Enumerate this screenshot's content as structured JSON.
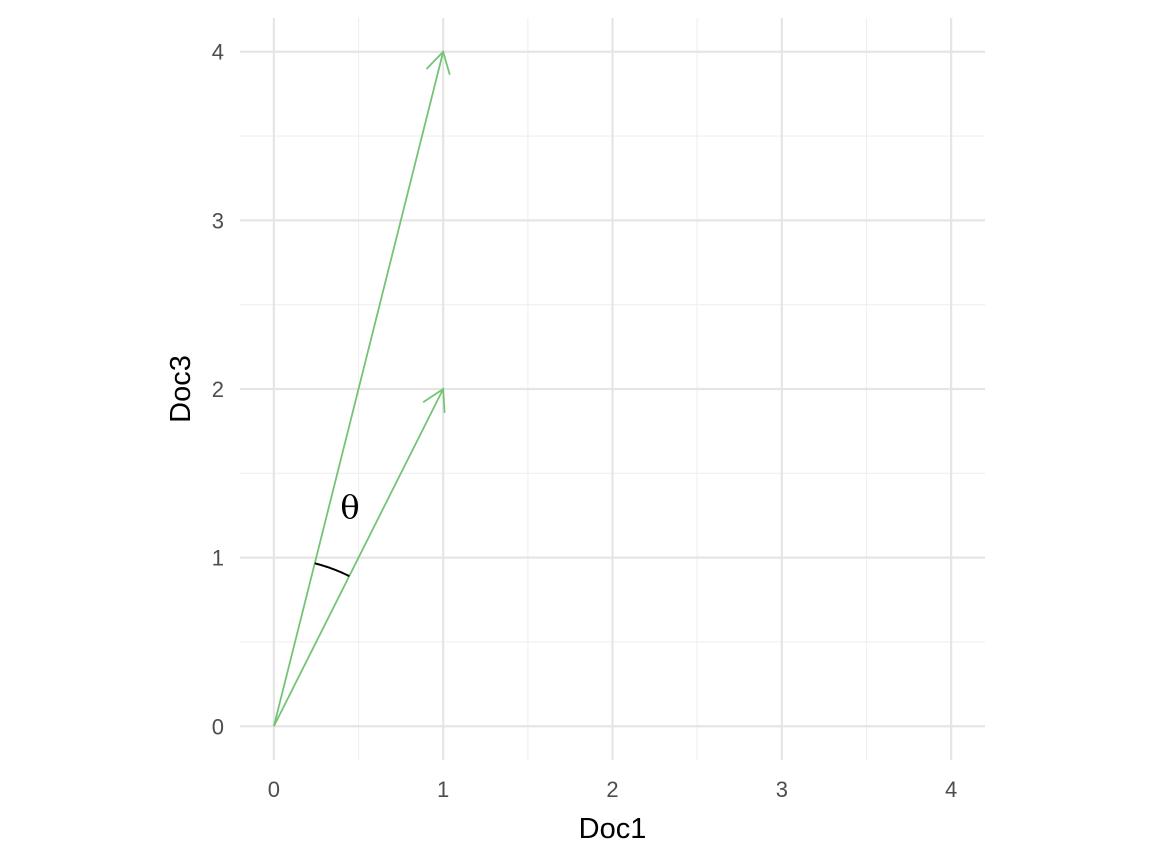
{
  "chart_data": {
    "type": "line",
    "xlabel": "Doc1",
    "ylabel": "Doc3",
    "xlim": [
      -0.2,
      4.2
    ],
    "ylim": [
      -0.2,
      4.2
    ],
    "x_ticks": [
      0,
      1,
      2,
      3,
      4
    ],
    "y_ticks": [
      0,
      1,
      2,
      3,
      4
    ],
    "grid": true,
    "legend": "none",
    "series_color": "#74c476",
    "angle_arc_color": "#000000",
    "vectors": [
      {
        "x0": 0,
        "y0": 0,
        "x1": 1,
        "y1": 4
      },
      {
        "x0": 0,
        "y0": 0,
        "x1": 1,
        "y1": 2
      }
    ],
    "angle_annotation": {
      "label": "θ",
      "x": 0.45,
      "y": 1.3
    }
  }
}
